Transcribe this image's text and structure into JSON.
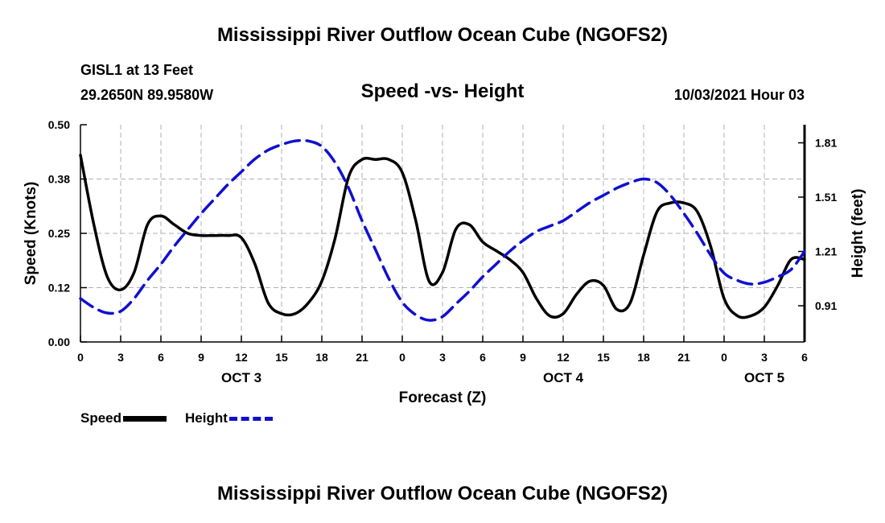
{
  "header": {
    "title": "Mississippi River Outflow Ocean Cube (NGOFS2)",
    "station": "GISL1 at 13 Feet",
    "coords": "29.2650N  89.9580W",
    "subtitle": "Speed -vs- Height",
    "datetime": "10/03/2021 Hour 03"
  },
  "footer": {
    "title": "Mississippi River Outflow Ocean Cube (NGOFS2)"
  },
  "legend": {
    "speed_label": "Speed",
    "height_label": "Height"
  },
  "colors": {
    "speed": "#000000",
    "height": "#1010d0",
    "grid": "#b0b0b0"
  },
  "chart_data": {
    "type": "line",
    "title": "Speed -vs- Height",
    "xlabel": "Forecast (Z)",
    "ylabel": "Speed (Knots)",
    "y2label": "Height (feet)",
    "x_range": [
      0,
      54
    ],
    "ylim": [
      0,
      0.5
    ],
    "y2lim": [
      0.71,
      1.91
    ],
    "x_ticks": [
      {
        "x": 0,
        "label": "0"
      },
      {
        "x": 3,
        "label": "3"
      },
      {
        "x": 6,
        "label": "6"
      },
      {
        "x": 9,
        "label": "9"
      },
      {
        "x": 12,
        "label": "12"
      },
      {
        "x": 15,
        "label": "15"
      },
      {
        "x": 18,
        "label": "18"
      },
      {
        "x": 21,
        "label": "21"
      },
      {
        "x": 24,
        "label": "0"
      },
      {
        "x": 27,
        "label": "3"
      },
      {
        "x": 30,
        "label": "6"
      },
      {
        "x": 33,
        "label": "9"
      },
      {
        "x": 36,
        "label": "12"
      },
      {
        "x": 39,
        "label": "15"
      },
      {
        "x": 42,
        "label": "18"
      },
      {
        "x": 45,
        "label": "21"
      },
      {
        "x": 48,
        "label": "0"
      },
      {
        "x": 51,
        "label": "3"
      },
      {
        "x": 54,
        "label": "6"
      }
    ],
    "date_labels": [
      {
        "x": 12,
        "label": "OCT 3"
      },
      {
        "x": 36,
        "label": "OCT 4"
      },
      {
        "x": 51,
        "label": "OCT 5"
      }
    ],
    "y_ticks": [
      {
        "v": 0.0,
        "label": "0.00"
      },
      {
        "v": 0.125,
        "label": "0.12"
      },
      {
        "v": 0.25,
        "label": "0.25"
      },
      {
        "v": 0.375,
        "label": "0.38"
      },
      {
        "v": 0.5,
        "label": "0.50"
      }
    ],
    "y2_ticks": [
      {
        "v": 0.91,
        "label": "0.91"
      },
      {
        "v": 1.21,
        "label": "1.21"
      },
      {
        "v": 1.51,
        "label": "1.51"
      },
      {
        "v": 1.81,
        "label": "1.81"
      }
    ],
    "series": [
      {
        "name": "Speed",
        "axis": "left",
        "x": [
          0,
          1,
          2,
          3,
          4,
          5,
          6,
          7,
          8,
          9,
          10,
          11,
          12,
          13,
          14,
          15,
          16,
          17,
          18,
          19,
          20,
          21,
          22,
          23,
          24,
          25,
          26,
          27,
          28,
          29,
          30,
          31,
          32,
          33,
          34,
          35,
          36,
          37,
          38,
          39,
          40,
          41,
          42,
          43,
          44,
          45,
          46,
          47,
          48,
          49,
          50,
          51,
          52,
          53,
          54
        ],
        "values": [
          0.43,
          0.27,
          0.15,
          0.12,
          0.16,
          0.27,
          0.29,
          0.27,
          0.25,
          0.245,
          0.245,
          0.245,
          0.24,
          0.18,
          0.09,
          0.065,
          0.065,
          0.09,
          0.14,
          0.24,
          0.38,
          0.42,
          0.42,
          0.42,
          0.39,
          0.28,
          0.14,
          0.16,
          0.26,
          0.27,
          0.23,
          0.21,
          0.19,
          0.16,
          0.1,
          0.06,
          0.065,
          0.11,
          0.14,
          0.13,
          0.075,
          0.09,
          0.2,
          0.3,
          0.32,
          0.32,
          0.3,
          0.22,
          0.1,
          0.06,
          0.06,
          0.08,
          0.13,
          0.19,
          0.19
        ]
      },
      {
        "name": "Height",
        "axis": "right",
        "x": [
          0,
          1,
          2,
          3,
          4,
          5,
          6,
          7,
          8,
          9,
          10,
          11,
          12,
          13,
          14,
          15,
          16,
          17,
          18,
          19,
          20,
          21,
          22,
          23,
          24,
          25,
          26,
          27,
          28,
          29,
          30,
          31,
          32,
          33,
          34,
          35,
          36,
          37,
          38,
          39,
          40,
          41,
          42,
          43,
          44,
          45,
          46,
          47,
          48,
          49,
          50,
          51,
          52,
          53,
          54
        ],
        "values": [
          0.95,
          0.9,
          0.87,
          0.88,
          0.95,
          1.05,
          1.14,
          1.24,
          1.33,
          1.42,
          1.5,
          1.58,
          1.65,
          1.72,
          1.77,
          1.8,
          1.82,
          1.82,
          1.79,
          1.7,
          1.56,
          1.38,
          1.22,
          1.06,
          0.93,
          0.86,
          0.83,
          0.85,
          0.92,
          0.99,
          1.07,
          1.14,
          1.21,
          1.27,
          1.32,
          1.35,
          1.38,
          1.43,
          1.48,
          1.52,
          1.56,
          1.59,
          1.61,
          1.59,
          1.52,
          1.42,
          1.31,
          1.19,
          1.09,
          1.05,
          1.03,
          1.04,
          1.07,
          1.11,
          1.21
        ]
      }
    ]
  }
}
